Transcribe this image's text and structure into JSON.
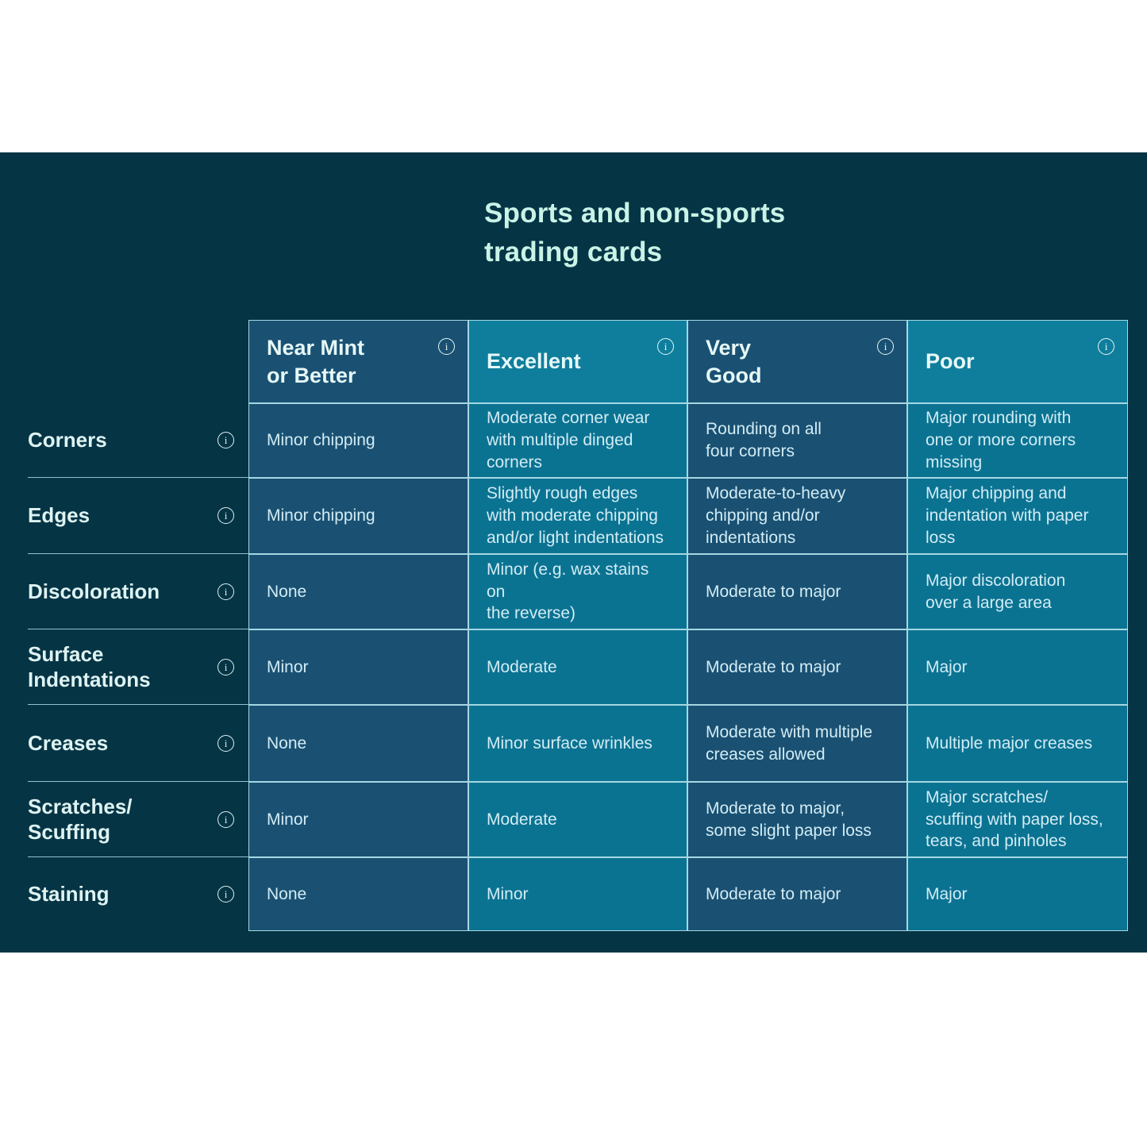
{
  "title": "Sports and non-sports\ntrading cards",
  "icons": {
    "info": "i"
  },
  "columns": [
    {
      "label": "Near Mint\nor Better",
      "tone": "navy"
    },
    {
      "label": "Excellent",
      "tone": "teal"
    },
    {
      "label": "Very\nGood",
      "tone": "navy"
    },
    {
      "label": "Poor",
      "tone": "teal"
    }
  ],
  "rows": [
    {
      "label": "Corners",
      "cells": [
        "Minor chipping",
        "Moderate corner wear\nwith multiple dinged\ncorners",
        "Rounding on all\nfour corners",
        "Major rounding with\none or more corners\nmissing"
      ]
    },
    {
      "label": "Edges",
      "cells": [
        "Minor chipping",
        "Slightly rough edges\nwith moderate chipping\nand/or light indentations",
        "Moderate-to-heavy\nchipping and/or\nindentations",
        "Major chipping and\nindentation with paper\nloss"
      ]
    },
    {
      "label": "Discoloration",
      "cells": [
        "None",
        "Minor (e.g. wax stains on\nthe reverse)",
        "Moderate to major",
        "Major discoloration\nover a large area"
      ]
    },
    {
      "label": "Surface\nIndentations",
      "cells": [
        "Minor",
        "Moderate",
        "Moderate to major",
        "Major"
      ]
    },
    {
      "label": "Creases",
      "cells": [
        "None",
        "Minor surface wrinkles",
        "Moderate with multiple\ncreases allowed",
        "Multiple major creases"
      ]
    },
    {
      "label": "Scratches/\nScuffing",
      "cells": [
        "Minor",
        "Moderate",
        "Moderate to major,\nsome slight paper loss",
        "Major scratches/\nscuffing with paper loss,\ntears, and pinholes"
      ]
    },
    {
      "label": "Staining",
      "cells": [
        "None",
        "Minor",
        "Moderate to major",
        "Major"
      ]
    }
  ],
  "colors": {
    "page_bg": "#ffffff",
    "panel_bg": "#053445",
    "navy_cell": "#1a5173",
    "teal_cell": "#0b7392",
    "teal_header": "#0f7e9d",
    "grid_line": "#a5d8e2",
    "label_line": "#8fc3d2",
    "title_text": "#c9f3e6",
    "header_text": "#e6f8f7",
    "label_text": "#def3f2",
    "cell_text": "#d2ecf4"
  }
}
